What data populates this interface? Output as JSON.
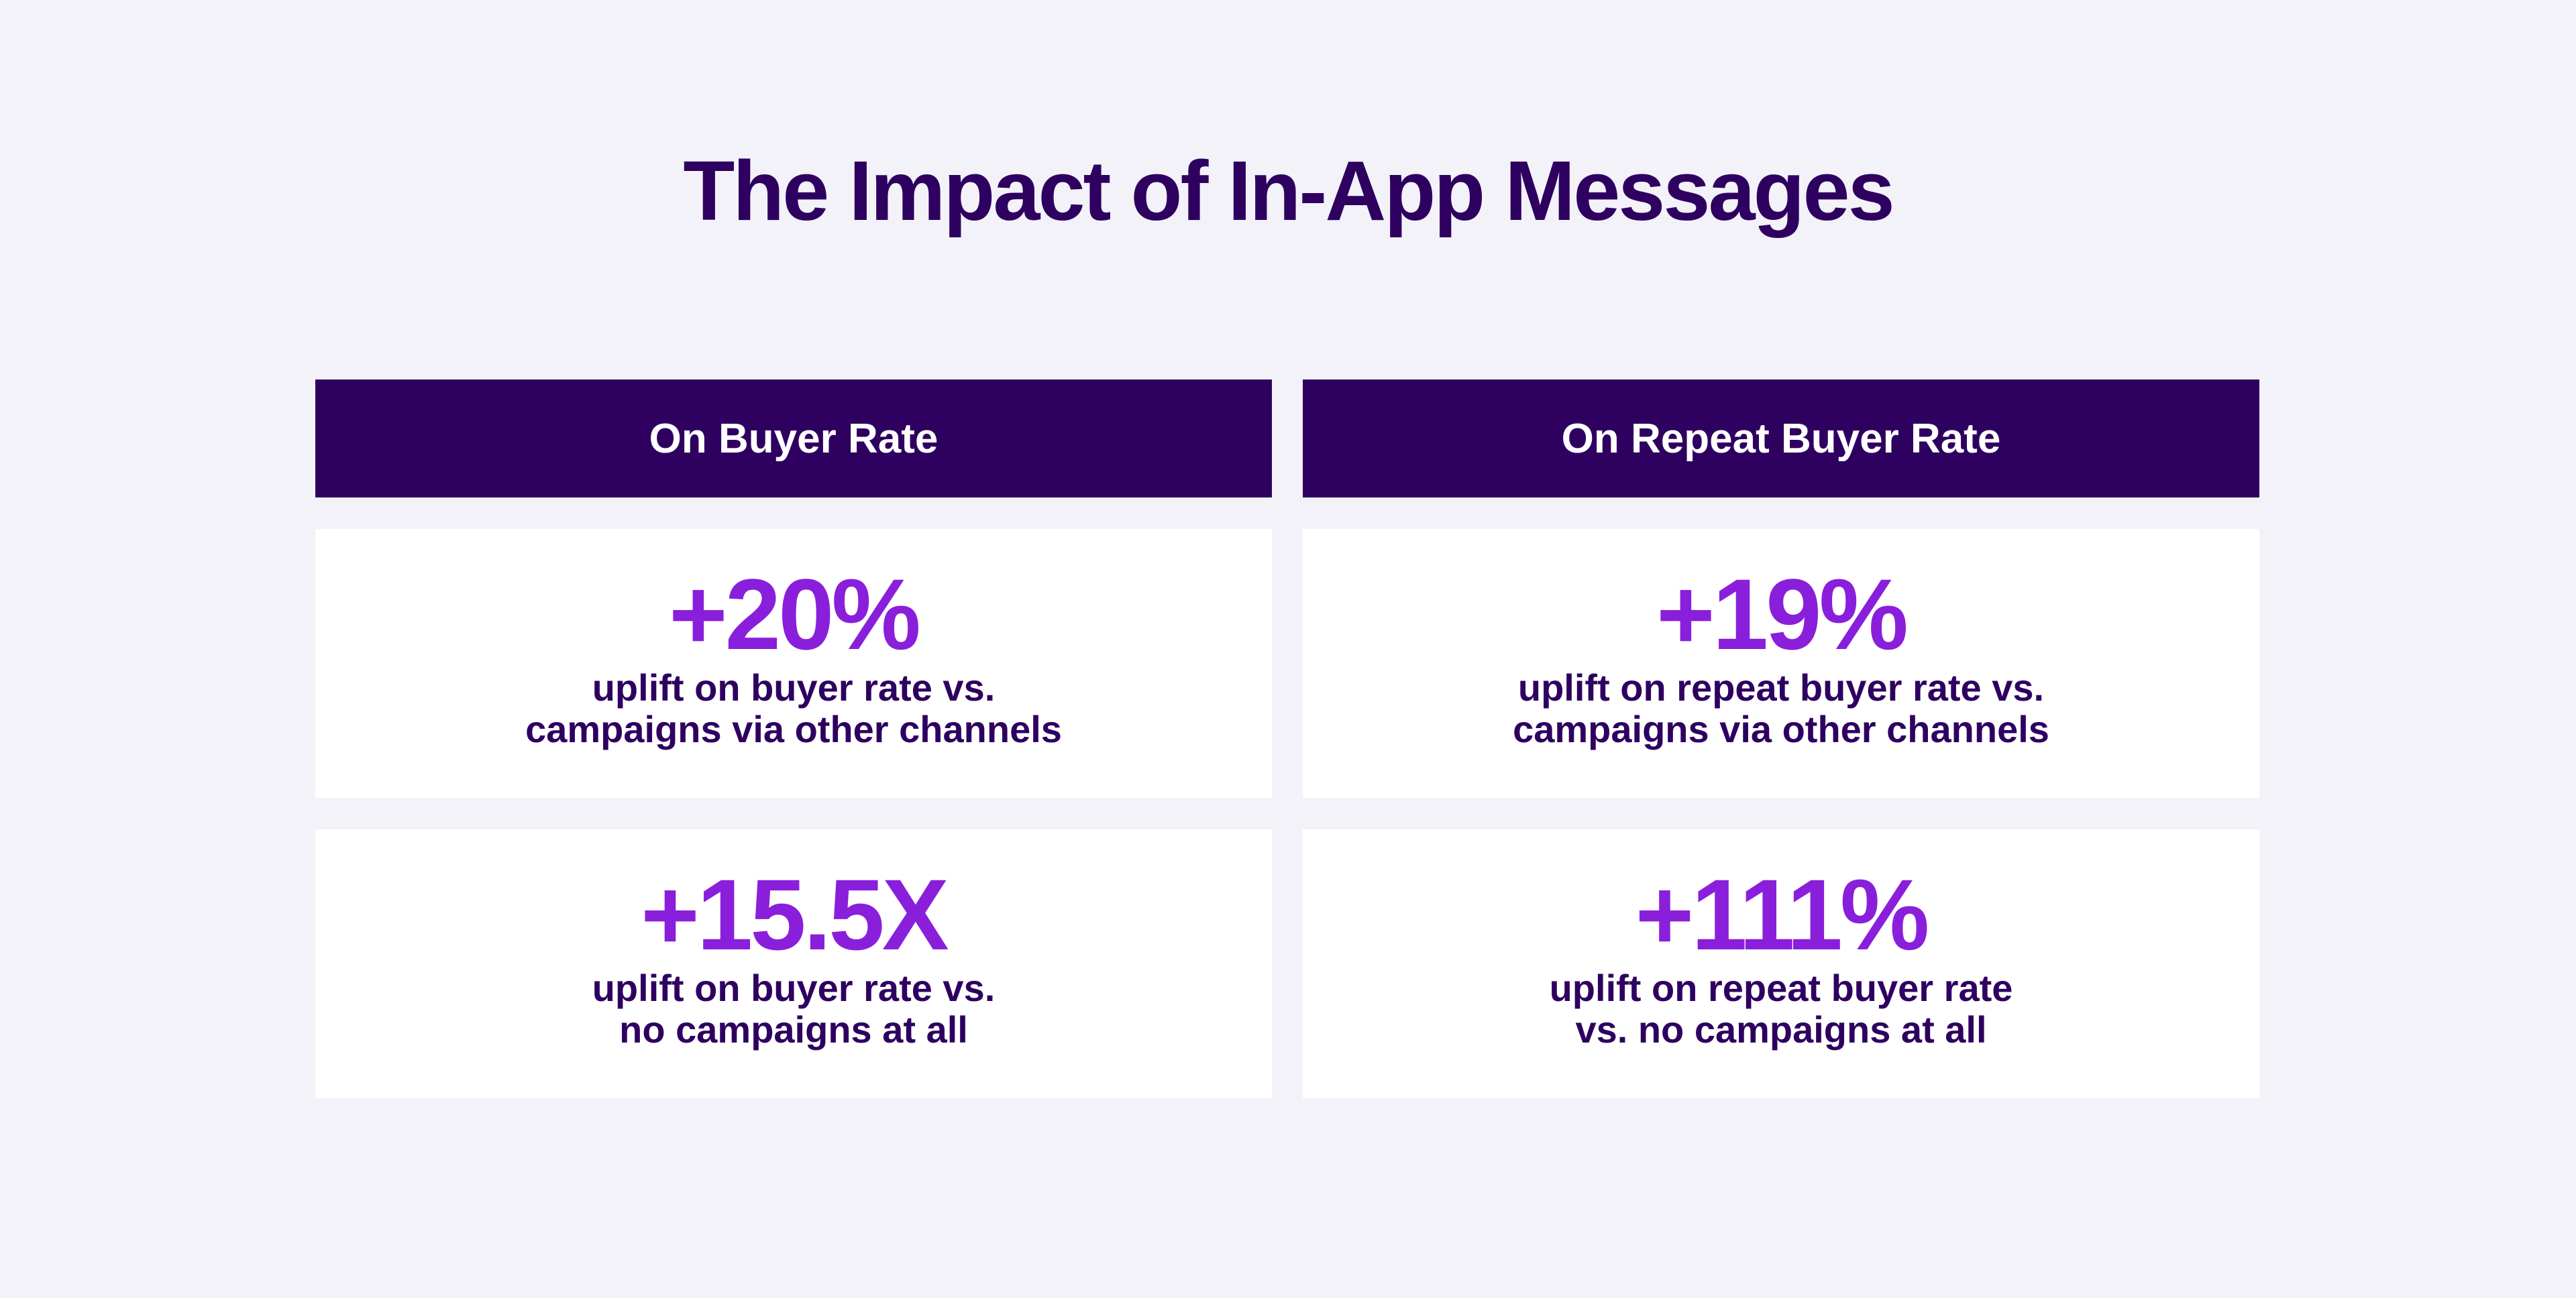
{
  "title": "The Impact of In-App Messages",
  "columns": [
    {
      "header": "On Buyer Rate",
      "cards": [
        {
          "stat": "+20%",
          "lines": [
            "uplift on buyer rate vs.",
            "campaigns via other channels"
          ]
        },
        {
          "stat": "+15.5X",
          "lines": [
            "uplift on buyer rate vs.",
            "no campaigns at all"
          ]
        }
      ]
    },
    {
      "header": "On Repeat Buyer Rate",
      "cards": [
        {
          "stat": "+19%",
          "lines": [
            "uplift on repeat buyer rate vs.",
            "campaigns via other channels"
          ]
        },
        {
          "stat": "+111%",
          "lines": [
            "uplift on repeat buyer rate",
            "vs. no campaigns at all"
          ]
        }
      ]
    }
  ]
}
